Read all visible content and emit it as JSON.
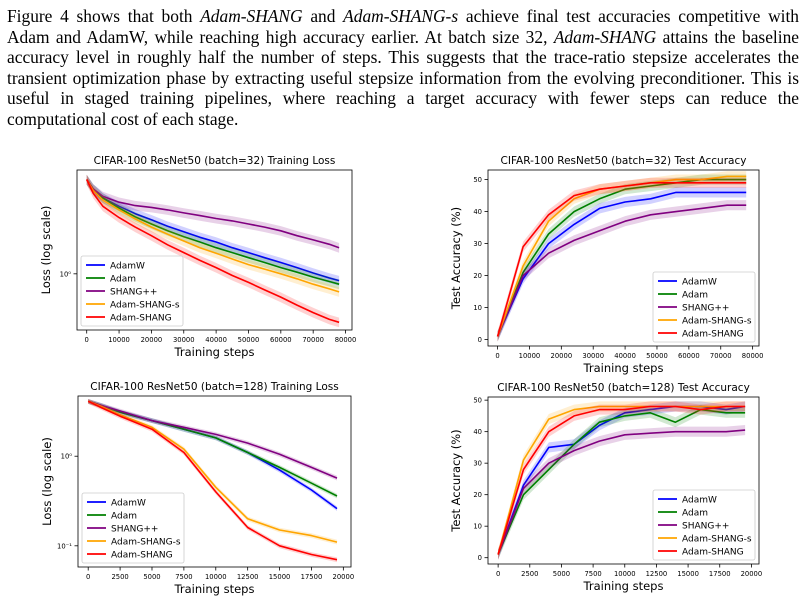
{
  "paragraph": {
    "s1a": "Figure 4 shows that both ",
    "s1b": "Adam-SHANG",
    "s1c": " and ",
    "s1d": "Adam-SHANG-s",
    "s1e": " achieve final test accuracies competitive with Adam and AdamW, while reaching high accuracy earlier. At batch size 32, ",
    "s1f": "Adam-SHANG",
    "s1g": " attains the baseline accuracy level in roughly half the number of steps. This suggests that the trace-ratio stepsize accelerates the transient optimization phase by extracting useful stepsize information from the evolving preconditioner. This is useful in staged training pipelines, where reaching a target accuracy with fewer steps can reduce the computational cost of each stage."
  },
  "chart_data": [
    {
      "type": "line",
      "title": "CIFAR-100 ResNet50 (batch=32) Training Loss",
      "xlabel": "Training steps",
      "ylabel": "Loss (log scale)",
      "log_y": true,
      "xlim": [
        -3000,
        82000
      ],
      "ylim": [
        0.5,
        3.6
      ],
      "xticks": [
        0,
        10000,
        20000,
        30000,
        40000,
        50000,
        60000,
        70000,
        80000
      ],
      "yticks": [
        1
      ],
      "ytick_labels": [
        "10⁰"
      ],
      "legend": "bottom-left",
      "x": [
        0,
        2000,
        5000,
        10000,
        15000,
        20000,
        25000,
        30000,
        35000,
        40000,
        45000,
        50000,
        55000,
        60000,
        65000,
        70000,
        75000,
        78000
      ],
      "series": [
        {
          "name": "AdamW",
          "color": "#0000ff",
          "values": [
            3.2,
            2.85,
            2.55,
            2.3,
            2.1,
            1.95,
            1.8,
            1.68,
            1.57,
            1.48,
            1.38,
            1.3,
            1.22,
            1.15,
            1.08,
            1.01,
            0.95,
            0.92
          ]
        },
        {
          "name": "Adam",
          "color": "#008000",
          "values": [
            3.2,
            2.85,
            2.55,
            2.25,
            2.02,
            1.85,
            1.7,
            1.58,
            1.48,
            1.38,
            1.3,
            1.22,
            1.15,
            1.08,
            1.02,
            0.96,
            0.91,
            0.88
          ]
        },
        {
          "name": "SHANG++",
          "color": "#800080",
          "values": [
            3.2,
            2.85,
            2.6,
            2.42,
            2.32,
            2.27,
            2.2,
            2.12,
            2.05,
            1.98,
            1.92,
            1.85,
            1.78,
            1.7,
            1.6,
            1.52,
            1.44,
            1.38
          ]
        },
        {
          "name": "Adam-SHANG-s",
          "color": "#ffa500",
          "values": [
            3.2,
            2.8,
            2.48,
            2.2,
            1.97,
            1.78,
            1.63,
            1.5,
            1.38,
            1.29,
            1.2,
            1.12,
            1.06,
            1.0,
            0.94,
            0.88,
            0.83,
            0.8
          ]
        },
        {
          "name": "Adam-SHANG",
          "color": "#ff0000",
          "values": [
            3.2,
            2.7,
            2.3,
            2.0,
            1.78,
            1.6,
            1.43,
            1.3,
            1.18,
            1.08,
            0.98,
            0.9,
            0.82,
            0.75,
            0.68,
            0.62,
            0.57,
            0.55
          ]
        }
      ]
    },
    {
      "type": "line",
      "title": "CIFAR-100 ResNet50 (batch=32) Test Accuracy",
      "xlabel": "Training steps",
      "ylabel": "Test Accuracy (%)",
      "xlim": [
        -3000,
        82000
      ],
      "ylim": [
        -2,
        53
      ],
      "xticks": [
        0,
        10000,
        20000,
        30000,
        40000,
        50000,
        60000,
        70000,
        80000
      ],
      "yticks": [
        0,
        10,
        20,
        30,
        40,
        50
      ],
      "legend": "bottom-right",
      "x": [
        0,
        8000,
        16000,
        24000,
        32000,
        40000,
        48000,
        56000,
        64000,
        72000,
        78000
      ],
      "series": [
        {
          "name": "AdamW",
          "color": "#0000ff",
          "values": [
            1,
            19,
            30,
            36,
            41,
            43,
            44,
            46,
            46,
            46,
            46
          ]
        },
        {
          "name": "Adam",
          "color": "#008000",
          "values": [
            1,
            21,
            33,
            40,
            44,
            47,
            48,
            49,
            50,
            50,
            50
          ]
        },
        {
          "name": "SHANG++",
          "color": "#800080",
          "values": [
            1,
            20,
            27,
            31,
            34,
            37,
            39,
            40,
            41,
            42,
            42
          ]
        },
        {
          "name": "Adam-SHANG-s",
          "color": "#ffa500",
          "values": [
            1,
            23,
            37,
            44,
            47,
            48,
            49,
            50,
            50,
            51,
            51
          ]
        },
        {
          "name": "Adam-SHANG",
          "color": "#ff0000",
          "values": [
            1,
            29,
            39,
            45,
            47,
            48,
            49,
            49,
            49,
            49,
            49
          ]
        }
      ]
    },
    {
      "type": "line",
      "title": "CIFAR-100 ResNet50 (batch=128) Training Loss",
      "xlabel": "Training steps",
      "ylabel": "Loss (log scale)",
      "log_y": true,
      "xlim": [
        -800,
        20600
      ],
      "ylim": [
        0.058,
        4.7
      ],
      "xticks": [
        0,
        2500,
        5000,
        7500,
        10000,
        12500,
        15000,
        17500,
        20000
      ],
      "yticks": [
        0.1,
        1
      ],
      "ytick_labels": [
        "10⁻¹",
        "10⁰"
      ],
      "legend": "bottom-left",
      "x": [
        0,
        1000,
        2500,
        5000,
        7500,
        10000,
        12500,
        15000,
        17500,
        19500
      ],
      "series": [
        {
          "name": "AdamW",
          "color": "#0000ff",
          "values": [
            4.1,
            3.7,
            3.1,
            2.5,
            2.0,
            1.6,
            1.1,
            0.7,
            0.42,
            0.26
          ]
        },
        {
          "name": "Adam",
          "color": "#008000",
          "values": [
            4.1,
            3.7,
            3.1,
            2.5,
            2.0,
            1.6,
            1.1,
            0.75,
            0.5,
            0.36
          ]
        },
        {
          "name": "SHANG++",
          "color": "#800080",
          "values": [
            4.1,
            3.7,
            3.2,
            2.5,
            2.1,
            1.75,
            1.4,
            1.05,
            0.75,
            0.57
          ]
        },
        {
          "name": "Adam-SHANG-s",
          "color": "#ffa500",
          "values": [
            4.1,
            3.6,
            2.9,
            2.1,
            1.2,
            0.45,
            0.2,
            0.15,
            0.13,
            0.11
          ]
        },
        {
          "name": "Adam-SHANG",
          "color": "#ff0000",
          "values": [
            4.1,
            3.5,
            2.8,
            2.0,
            1.1,
            0.4,
            0.16,
            0.1,
            0.08,
            0.07
          ]
        }
      ]
    },
    {
      "type": "line",
      "title": "CIFAR-100 ResNet50 (batch=128) Test Accuracy",
      "xlabel": "Training steps",
      "ylabel": "Test Accuracy (%)",
      "xlim": [
        -800,
        20600
      ],
      "ylim": [
        -2,
        51
      ],
      "xticks": [
        0,
        2500,
        5000,
        7500,
        10000,
        12500,
        15000,
        17500,
        20000
      ],
      "yticks": [
        0,
        10,
        20,
        30,
        40,
        50
      ],
      "legend": "bottom-right",
      "x": [
        0,
        2000,
        4000,
        6000,
        8000,
        10000,
        12000,
        14000,
        16000,
        18000,
        19500
      ],
      "series": [
        {
          "name": "AdamW",
          "color": "#0000ff",
          "values": [
            1,
            23,
            35,
            36,
            42,
            46,
            47,
            48,
            48,
            47,
            48
          ]
        },
        {
          "name": "Adam",
          "color": "#008000",
          "values": [
            1,
            20,
            28,
            36,
            43,
            45,
            46,
            43,
            47,
            46,
            46
          ]
        },
        {
          "name": "SHANG++",
          "color": "#800080",
          "values": [
            1,
            22,
            30,
            34,
            37,
            39,
            39.5,
            40,
            40,
            40,
            40.5
          ]
        },
        {
          "name": "Adam-SHANG-s",
          "color": "#ffa500",
          "values": [
            1,
            31,
            44,
            47,
            48,
            48,
            48,
            48,
            48,
            48,
            48
          ]
        },
        {
          "name": "Adam-SHANG",
          "color": "#ff0000",
          "values": [
            1,
            28,
            40,
            45,
            47,
            47,
            48,
            48,
            47,
            48,
            48
          ]
        }
      ]
    }
  ]
}
